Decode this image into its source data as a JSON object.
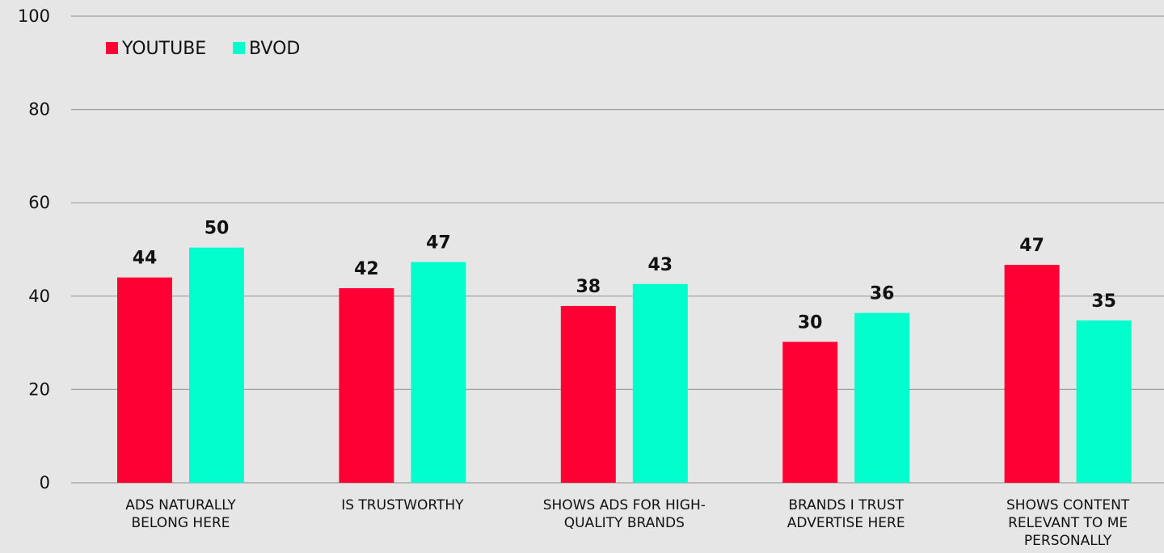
{
  "chart_data": {
    "type": "bar",
    "categories": [
      [
        "ADS NATURALLY",
        "BELONG HERE"
      ],
      [
        "IS TRUSTWORTHY"
      ],
      [
        "SHOWS ADS FOR HIGH-",
        "QUALITY BRANDS"
      ],
      [
        "BRANDS I TRUST",
        "ADVERTISE HERE"
      ],
      [
        "SHOWS CONTENT",
        "RELEVANT TO ME",
        "PERSONALLY"
      ]
    ],
    "series": [
      {
        "name": "YOUTUBE",
        "color": "#ff0035",
        "values": [
          44,
          41.7,
          37.9,
          30.2,
          46.7
        ],
        "labels": [
          "44",
          "42",
          "38",
          "30",
          "47"
        ]
      },
      {
        "name": "BVOD",
        "color": "#00ffcc",
        "values": [
          50.4,
          47.3,
          42.6,
          36.4,
          34.8
        ],
        "labels": [
          "50",
          "47",
          "43",
          "36",
          "35"
        ]
      }
    ],
    "ylim": [
      0,
      100
    ],
    "yticks": [
      0,
      20,
      40,
      60,
      80,
      100
    ],
    "grid": true,
    "legend_position": "top-left",
    "title": "",
    "xlabel": "",
    "ylabel": ""
  }
}
